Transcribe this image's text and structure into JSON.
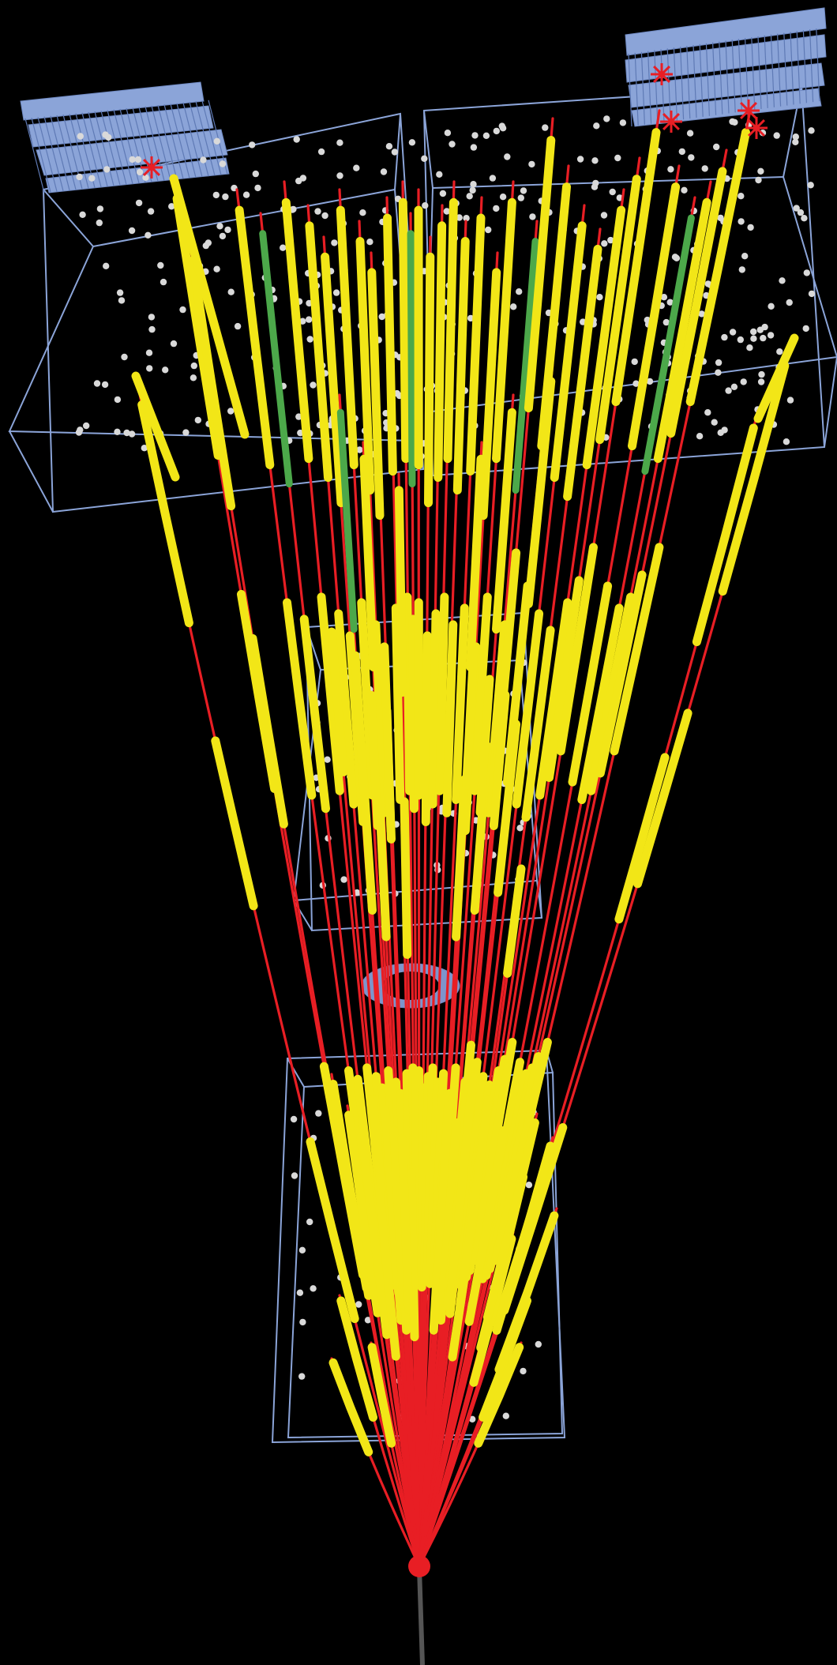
{
  "scene": {
    "background": "#000000",
    "colors": {
      "track": "#e81e24",
      "hit_on_track": "#f2e617",
      "secondary_segment": "#4ca84a",
      "unassociated_hit": "#d9d9d9",
      "detector_outline": "#8ba4d8",
      "chamber_fill": "#8ba4d8",
      "vertex": "#e81e24"
    },
    "elements": {
      "vertex": "primary-vertex",
      "tracks": "charged-particle-tracks",
      "stations": [
        "detector-station-near",
        "detector-station-middle",
        "detector-station-far-left",
        "detector-station-far-right"
      ],
      "chambers": [
        "chamber-array-left",
        "chamber-array-right"
      ],
      "markers": "star-marker"
    }
  }
}
